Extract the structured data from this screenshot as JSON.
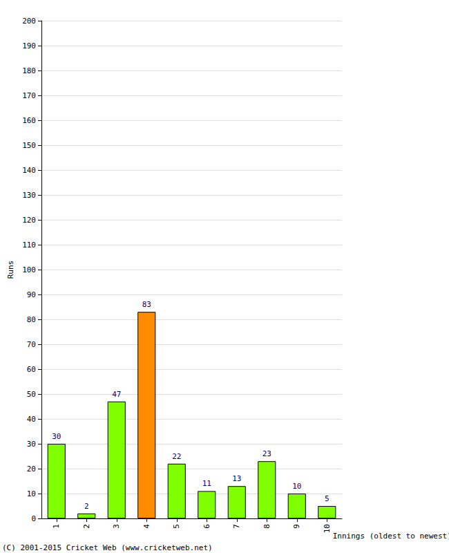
{
  "chart_data": {
    "type": "bar",
    "xlabel": "Innings (oldest to newest)",
    "ylabel": "Runs",
    "annotation": "(C) 2001-2015 Cricket Web (www.cricketweb.net)",
    "categories": [
      "1",
      "2",
      "3",
      "4",
      "5",
      "6",
      "7",
      "8",
      "9",
      "10"
    ],
    "values": [
      30,
      2,
      47,
      83,
      22,
      11,
      13,
      23,
      10,
      5
    ],
    "colors": [
      "#80ff00",
      "#80ff00",
      "#80ff00",
      "#ff8c00",
      "#80ff00",
      "#80ff00",
      "#80ff00",
      "#80ff00",
      "#80ff00",
      "#80ff00"
    ],
    "ylim": [
      0,
      200
    ],
    "yticks": [
      0,
      10,
      20,
      30,
      40,
      50,
      60,
      70,
      80,
      90,
      100,
      110,
      120,
      130,
      140,
      150,
      160,
      170,
      180,
      190,
      200
    ],
    "grid": true,
    "data_labels": true
  }
}
